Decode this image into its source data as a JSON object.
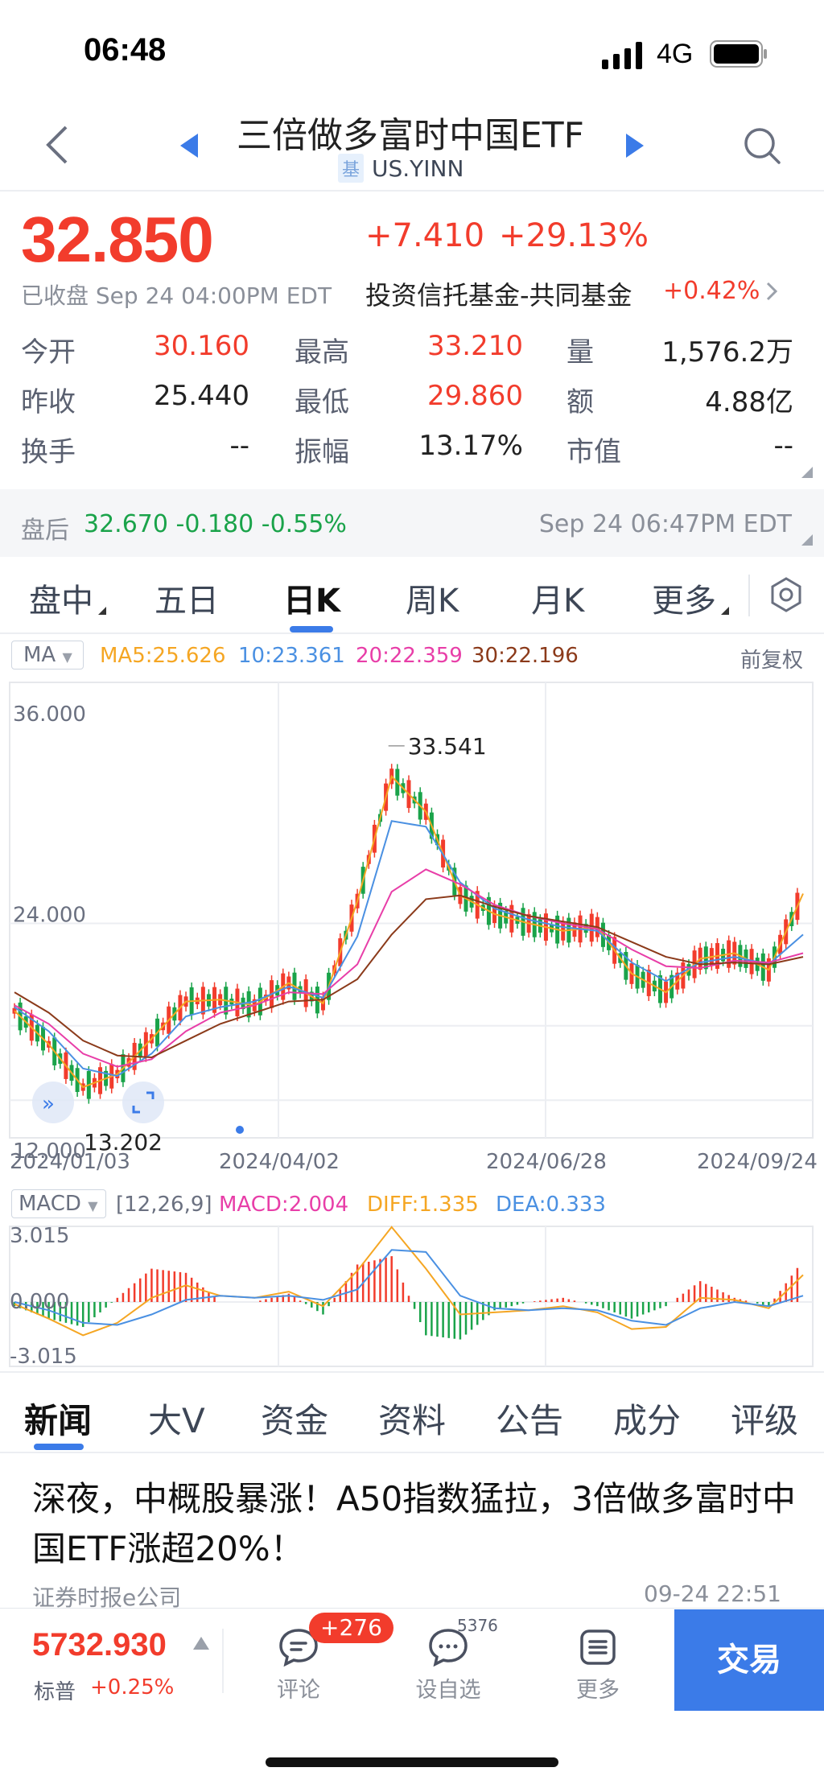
{
  "status": {
    "time": "06:48",
    "network": "4G"
  },
  "nav": {
    "title": "三倍做多富时中国ETF",
    "fund_badge": "基",
    "ticker": "US.YINN"
  },
  "quote": {
    "price": "32.850",
    "change": "+7.410",
    "change_pct": "+29.13%",
    "close_status": "已收盘 Sep 24 04:00PM EDT",
    "sector": "投资信托基金-共同基金",
    "sector_change": "+0.42%"
  },
  "stats": {
    "open_label": "今开",
    "open": "30.160",
    "high_label": "最高",
    "high": "33.210",
    "volume_label": "量",
    "volume": "1,576.2万",
    "prev_close_label": "昨收",
    "prev_close": "25.440",
    "low_label": "最低",
    "low": "29.860",
    "turnover_label": "额",
    "turnover": "4.88亿",
    "turnover_rate_label": "换手",
    "turnover_rate": "--",
    "amplitude_label": "振幅",
    "amplitude": "13.17%",
    "mkt_cap_label": "市值",
    "mkt_cap": "--"
  },
  "after_hours": {
    "label": "盘后",
    "value": "32.670 -0.180 -0.55%",
    "time": "Sep 24 06:47PM EDT"
  },
  "kline_tabs": [
    "盘中",
    "五日",
    "日K",
    "周K",
    "月K",
    "更多"
  ],
  "ma_legend": {
    "selector": "MA",
    "ma5": "MA5:25.626",
    "ma10": "10:23.361",
    "ma20": "20:22.359",
    "ma30": "30:22.196",
    "adjust": "前复权"
  },
  "macd_legend": {
    "selector": "MACD",
    "params": "[12,26,9]",
    "macd": "MACD:2.004",
    "diff": "DIFF:1.335",
    "dea": "DEA:0.333"
  },
  "colors": {
    "up": "#f23c2c",
    "down": "#1aa34a",
    "accent": "#3b7be8",
    "ma5": "#f5a623",
    "ma10": "#4a90e2",
    "ma20": "#e83ea8",
    "ma30": "#8b3a1a"
  },
  "chart_data": {
    "type": "line",
    "price_axis": {
      "labels": [
        "36.000",
        "24.000",
        "12.000"
      ],
      "ylim": [
        12,
        36
      ]
    },
    "x_labels": [
      "2024/01/03",
      "2024/04/02",
      "2024/06/28",
      "2024/09/24"
    ],
    "annotations": {
      "max": "33.541",
      "min": "13.202"
    },
    "x": [
      0,
      8,
      16,
      24,
      32,
      40,
      48,
      56,
      64,
      72,
      80,
      88,
      96,
      104,
      112,
      120,
      128,
      136,
      144,
      152,
      160,
      168,
      176,
      184
    ],
    "series": [
      {
        "name": "MA5",
        "values": [
          19.3,
          17.5,
          15.2,
          15.9,
          17.8,
          19.8,
          19.9,
          19.6,
          20.8,
          19.7,
          25.2,
          31.9,
          30.0,
          25.5,
          24.5,
          24.0,
          23.6,
          23.8,
          21.3,
          20.3,
          22.1,
          22.4,
          21.5,
          25.6
        ]
      },
      {
        "name": "MA10",
        "values": [
          19.5,
          18.2,
          16.2,
          15.8,
          17.0,
          19.0,
          19.5,
          19.8,
          20.6,
          20.0,
          23.3,
          29.5,
          29.2,
          26.2,
          24.8,
          24.2,
          23.8,
          23.6,
          21.9,
          20.9,
          21.9,
          22.2,
          21.8,
          23.4
        ]
      },
      {
        "name": "MA20",
        "values": [
          19.6,
          18.6,
          17.0,
          16.3,
          16.7,
          18.2,
          19.2,
          19.6,
          20.3,
          20.2,
          21.8,
          25.7,
          26.9,
          26.1,
          25.0,
          24.4,
          24.0,
          23.7,
          22.6,
          21.7,
          21.6,
          22.0,
          21.9,
          22.4
        ]
      },
      {
        "name": "MA30",
        "values": [
          20.3,
          19.2,
          17.7,
          16.9,
          16.8,
          17.7,
          18.6,
          19.2,
          19.8,
          19.9,
          21.0,
          23.4,
          25.3,
          25.5,
          24.9,
          24.4,
          24.1,
          23.8,
          23.0,
          22.2,
          21.8,
          21.9,
          21.8,
          22.2
        ]
      }
    ],
    "macd": {
      "axis_labels": [
        "3.015",
        "0.000",
        "-3.015"
      ],
      "ylim": [
        -3.015,
        3.015
      ],
      "diff": [
        -0.1,
        -0.8,
        -1.6,
        -1.0,
        0.2,
        0.8,
        0.3,
        0.2,
        0.5,
        -0.2,
        1.5,
        3.6,
        1.6,
        -0.6,
        -0.5,
        -0.4,
        -0.2,
        -0.5,
        -1.3,
        -1.2,
        0.2,
        0.1,
        -0.3,
        1.3
      ],
      "dea": [
        0.0,
        -0.4,
        -1.0,
        -1.1,
        -0.6,
        0.1,
        0.3,
        0.2,
        0.3,
        0.1,
        0.6,
        2.5,
        2.4,
        0.3,
        -0.3,
        -0.4,
        -0.3,
        -0.4,
        -0.9,
        -1.1,
        -0.3,
        0.0,
        -0.2,
        0.3
      ]
    }
  },
  "news_tabs": [
    "新闻",
    "大V",
    "资金",
    "资料",
    "公告",
    "成分",
    "评级"
  ],
  "news": {
    "title": "深夜，中概股暴涨！A50指数猛拉，3倍做多富时中国ETF涨超20%！",
    "source": "证券时报e公司",
    "time": "09-24 22:51"
  },
  "bottom": {
    "index_value": "5732.930",
    "index_name": "标普",
    "index_change": "+0.25%",
    "comment_label": "评论",
    "comment_badge": "+276",
    "watch_label": "设自选",
    "watch_count": "5376",
    "more_label": "更多",
    "trade_label": "交易"
  }
}
